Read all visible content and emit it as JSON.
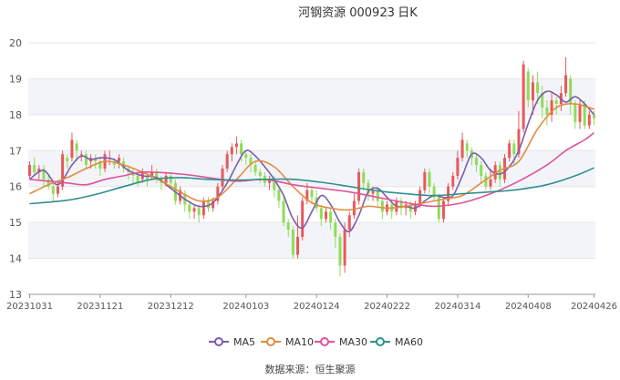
{
  "header": {
    "title": "河钢资源 000923",
    "period": "日K"
  },
  "source": "数据来源：恒生聚源",
  "chart_data": {
    "type": "candlestick",
    "ylim": [
      13,
      20
    ],
    "yticks": [
      "13",
      "14",
      "15",
      "16",
      "17",
      "18",
      "19",
      "20"
    ],
    "xticks": [
      {
        "label": "20231031",
        "index": 0
      },
      {
        "label": "20231121",
        "index": 15
      },
      {
        "label": "20231212",
        "index": 30
      },
      {
        "label": "20240103",
        "index": 46
      },
      {
        "label": "20240124",
        "index": 61
      },
      {
        "label": "20240222",
        "index": 76
      },
      {
        "label": "20240314",
        "index": 91
      },
      {
        "label": "20240408",
        "index": 106
      },
      {
        "label": "20240426",
        "index": 120
      }
    ],
    "colors": {
      "up": "#e8595a",
      "down": "#8fdc57",
      "band": "#f3f4f9",
      "axis": "#999999",
      "grid": "#e6e6e6"
    },
    "candles": [
      [
        16.3,
        16.6,
        16.7,
        16.2
      ],
      [
        16.6,
        16.4,
        16.8,
        16.3
      ],
      [
        16.4,
        16.5,
        16.6,
        16.2
      ],
      [
        16.5,
        16.2,
        16.6,
        16.0
      ],
      [
        16.2,
        16.0,
        16.3,
        15.9
      ],
      [
        16.0,
        15.8,
        16.1,
        15.6
      ],
      [
        15.8,
        16.0,
        16.1,
        15.7
      ],
      [
        16.0,
        16.9,
        17.0,
        15.9
      ],
      [
        16.8,
        16.7,
        16.9,
        16.5
      ],
      [
        16.8,
        17.3,
        17.5,
        16.7
      ],
      [
        17.2,
        17.0,
        17.3,
        16.7
      ],
      [
        16.9,
        16.9,
        17.0,
        16.7
      ],
      [
        16.9,
        16.6,
        17.0,
        16.5
      ],
      [
        16.7,
        16.8,
        16.9,
        16.5
      ],
      [
        16.8,
        16.7,
        16.9,
        16.5
      ],
      [
        16.7,
        16.5,
        16.8,
        16.3
      ],
      [
        16.5,
        16.9,
        17.0,
        16.4
      ],
      [
        16.8,
        16.8,
        17.0,
        16.6
      ],
      [
        16.7,
        16.6,
        16.8,
        16.5
      ],
      [
        16.7,
        16.8,
        16.9,
        16.5
      ],
      [
        16.7,
        16.5,
        16.8,
        16.4
      ],
      [
        16.5,
        16.4,
        16.6,
        16.2
      ],
      [
        16.4,
        16.3,
        16.5,
        16.1
      ],
      [
        16.3,
        16.1,
        16.4,
        16.0
      ],
      [
        16.2,
        16.4,
        16.5,
        16.1
      ],
      [
        16.3,
        16.2,
        16.4,
        16.0
      ],
      [
        16.3,
        16.4,
        16.6,
        16.2
      ],
      [
        16.4,
        16.2,
        16.5,
        16.1
      ],
      [
        16.2,
        16.1,
        16.3,
        15.9
      ],
      [
        16.1,
        16.3,
        16.4,
        16.0
      ],
      [
        16.3,
        16.1,
        16.4,
        16.0
      ],
      [
        16.1,
        15.6,
        16.2,
        15.5
      ],
      [
        15.6,
        15.9,
        16.0,
        15.5
      ],
      [
        15.8,
        15.5,
        15.9,
        15.3
      ],
      [
        15.5,
        15.3,
        15.6,
        15.1
      ],
      [
        15.3,
        15.4,
        15.5,
        15.1
      ],
      [
        15.4,
        15.2,
        15.5,
        15.0
      ],
      [
        15.2,
        15.6,
        15.7,
        15.1
      ],
      [
        15.6,
        15.4,
        15.7,
        15.3
      ],
      [
        15.4,
        15.6,
        15.7,
        15.3
      ],
      [
        15.6,
        16.0,
        16.1,
        15.5
      ],
      [
        16.0,
        16.5,
        16.6,
        15.9
      ],
      [
        16.5,
        16.9,
        17.0,
        16.4
      ],
      [
        16.9,
        17.1,
        17.2,
        16.7
      ],
      [
        17.1,
        17.2,
        17.4,
        16.9
      ],
      [
        17.2,
        16.9,
        17.3,
        16.7
      ],
      [
        16.9,
        16.8,
        17.0,
        16.6
      ],
      [
        16.8,
        16.6,
        16.9,
        16.4
      ],
      [
        16.6,
        16.4,
        16.7,
        16.3
      ],
      [
        16.4,
        16.3,
        16.5,
        16.1
      ],
      [
        16.3,
        16.1,
        16.4,
        16.0
      ],
      [
        16.1,
        16.2,
        16.3,
        15.9
      ],
      [
        16.2,
        15.9,
        16.3,
        15.7
      ],
      [
        15.9,
        15.6,
        16.0,
        15.4
      ],
      [
        15.6,
        15.0,
        15.7,
        14.9
      ],
      [
        15.0,
        14.8,
        15.1,
        14.6
      ],
      [
        14.8,
        14.1,
        14.9,
        14.0
      ],
      [
        14.1,
        14.6,
        15.2,
        14.0
      ],
      [
        14.6,
        15.6,
        15.7,
        14.5
      ],
      [
        15.6,
        15.9,
        16.1,
        15.5
      ],
      [
        15.9,
        15.7,
        16.0,
        15.5
      ],
      [
        15.7,
        15.4,
        15.9,
        15.3
      ],
      [
        15.4,
        15.1,
        15.5,
        14.9
      ],
      [
        15.1,
        15.3,
        15.4,
        15.0
      ],
      [
        15.3,
        15.0,
        15.4,
        14.8
      ],
      [
        15.0,
        14.6,
        15.1,
        14.3
      ],
      [
        14.6,
        13.8,
        14.7,
        13.5
      ],
      [
        13.8,
        14.8,
        15.0,
        13.6
      ],
      [
        14.8,
        15.2,
        15.3,
        14.6
      ],
      [
        15.2,
        15.6,
        15.8,
        15.1
      ],
      [
        15.6,
        16.4,
        16.5,
        15.5
      ],
      [
        16.4,
        16.1,
        16.5,
        15.9
      ],
      [
        16.1,
        15.8,
        16.2,
        15.6
      ],
      [
        15.8,
        15.9,
        16.0,
        15.6
      ],
      [
        15.9,
        15.6,
        16.0,
        15.4
      ],
      [
        15.6,
        15.3,
        15.7,
        15.1
      ],
      [
        15.3,
        15.5,
        15.6,
        15.2
      ],
      [
        15.5,
        15.3,
        15.6,
        15.1
      ],
      [
        15.3,
        15.6,
        15.7,
        15.2
      ],
      [
        15.6,
        15.4,
        15.7,
        15.2
      ],
      [
        15.4,
        15.5,
        15.6,
        15.2
      ],
      [
        15.5,
        15.3,
        15.6,
        15.1
      ],
      [
        15.3,
        15.5,
        15.6,
        15.2
      ],
      [
        15.5,
        15.9,
        16.0,
        15.4
      ],
      [
        15.9,
        16.4,
        16.5,
        15.8
      ],
      [
        16.4,
        16.0,
        16.5,
        15.8
      ],
      [
        16.0,
        15.7,
        16.1,
        15.6
      ],
      [
        15.7,
        15.1,
        15.8,
        15.0
      ],
      [
        15.1,
        15.6,
        15.7,
        15.0
      ],
      [
        15.6,
        16.0,
        16.1,
        15.5
      ],
      [
        16.0,
        16.3,
        16.4,
        15.9
      ],
      [
        16.3,
        16.8,
        17.0,
        16.2
      ],
      [
        16.8,
        17.3,
        17.5,
        16.7
      ],
      [
        17.2,
        17.0,
        17.3,
        16.8
      ],
      [
        17.0,
        16.8,
        17.1,
        16.6
      ],
      [
        16.8,
        16.6,
        16.9,
        16.4
      ],
      [
        16.6,
        16.3,
        16.7,
        16.1
      ],
      [
        16.3,
        16.0,
        16.4,
        15.9
      ],
      [
        16.0,
        16.2,
        16.5,
        15.9
      ],
      [
        16.2,
        16.6,
        16.7,
        16.1
      ],
      [
        16.6,
        16.2,
        16.7,
        16.0
      ],
      [
        16.2,
        16.8,
        16.9,
        16.1
      ],
      [
        16.8,
        17.2,
        17.3,
        16.7
      ],
      [
        17.2,
        16.9,
        17.3,
        16.6
      ],
      [
        16.9,
        17.6,
        18.1,
        16.8
      ],
      [
        17.6,
        19.4,
        19.5,
        17.5
      ],
      [
        19.2,
        18.4,
        19.3,
        18.2
      ],
      [
        18.4,
        18.9,
        19.1,
        18.0
      ],
      [
        18.9,
        18.6,
        19.2,
        18.3
      ],
      [
        18.6,
        18.2,
        18.8,
        17.9
      ],
      [
        18.2,
        18.0,
        18.4,
        17.7
      ],
      [
        18.0,
        18.4,
        18.6,
        17.8
      ],
      [
        18.4,
        18.3,
        18.5,
        18.0
      ],
      [
        18.3,
        18.6,
        18.8,
        18.1
      ],
      [
        18.6,
        19.1,
        19.6,
        18.5
      ],
      [
        19.0,
        18.3,
        19.1,
        18.0
      ],
      [
        18.3,
        17.8,
        18.4,
        17.6
      ],
      [
        17.8,
        18.3,
        18.4,
        17.6
      ],
      [
        18.3,
        17.7,
        18.4,
        17.6
      ],
      [
        17.7,
        18.0,
        18.1,
        17.6
      ],
      [
        18.0,
        17.9,
        18.1,
        17.7
      ]
    ],
    "series": [
      {
        "name": "MA5",
        "color": "#7c5cae",
        "points": [
          [
            0,
            16.2
          ],
          [
            3,
            16.45
          ],
          [
            6,
            16.05
          ],
          [
            9,
            16.6
          ],
          [
            11,
            16.85
          ],
          [
            13,
            16.75
          ],
          [
            15,
            16.8
          ],
          [
            18,
            16.75
          ],
          [
            21,
            16.45
          ],
          [
            24,
            16.3
          ],
          [
            27,
            16.25
          ],
          [
            30,
            15.95
          ],
          [
            33,
            15.65
          ],
          [
            36,
            15.45
          ],
          [
            39,
            15.55
          ],
          [
            42,
            16.1
          ],
          [
            44,
            16.6
          ],
          [
            46,
            17.0
          ],
          [
            48,
            16.85
          ],
          [
            50,
            16.55
          ],
          [
            52,
            16.2
          ],
          [
            54,
            15.75
          ],
          [
            56,
            15.1
          ],
          [
            58,
            14.85
          ],
          [
            60,
            15.3
          ],
          [
            62,
            15.75
          ],
          [
            64,
            15.5
          ],
          [
            66,
            15.0
          ],
          [
            68,
            14.75
          ],
          [
            70,
            15.2
          ],
          [
            72,
            15.85
          ],
          [
            74,
            15.95
          ],
          [
            76,
            15.7
          ],
          [
            78,
            15.45
          ],
          [
            80,
            15.45
          ],
          [
            82,
            15.4
          ],
          [
            84,
            15.6
          ],
          [
            86,
            15.75
          ],
          [
            88,
            15.7
          ],
          [
            90,
            15.75
          ],
          [
            92,
            16.3
          ],
          [
            94,
            16.9
          ],
          [
            96,
            16.8
          ],
          [
            98,
            16.45
          ],
          [
            100,
            16.35
          ],
          [
            102,
            16.55
          ],
          [
            104,
            17.0
          ],
          [
            106,
            17.75
          ],
          [
            108,
            18.4
          ],
          [
            110,
            18.65
          ],
          [
            112,
            18.55
          ],
          [
            114,
            18.35
          ],
          [
            116,
            18.5
          ],
          [
            118,
            18.3
          ],
          [
            120,
            18.0
          ]
        ]
      },
      {
        "name": "MA10",
        "color": "#e38a3e",
        "points": [
          [
            0,
            15.8
          ],
          [
            4,
            16.05
          ],
          [
            8,
            16.25
          ],
          [
            12,
            16.5
          ],
          [
            16,
            16.7
          ],
          [
            20,
            16.6
          ],
          [
            24,
            16.4
          ],
          [
            28,
            16.15
          ],
          [
            32,
            15.85
          ],
          [
            36,
            15.6
          ],
          [
            40,
            15.7
          ],
          [
            44,
            16.2
          ],
          [
            48,
            16.7
          ],
          [
            52,
            16.55
          ],
          [
            56,
            16.0
          ],
          [
            60,
            15.55
          ],
          [
            64,
            15.4
          ],
          [
            68,
            15.35
          ],
          [
            72,
            15.45
          ],
          [
            76,
            15.4
          ],
          [
            80,
            15.45
          ],
          [
            84,
            15.55
          ],
          [
            88,
            15.65
          ],
          [
            92,
            15.75
          ],
          [
            96,
            16.1
          ],
          [
            100,
            16.45
          ],
          [
            104,
            16.7
          ],
          [
            108,
            17.6
          ],
          [
            112,
            18.2
          ],
          [
            116,
            18.3
          ],
          [
            120,
            18.15
          ]
        ]
      },
      {
        "name": "MA30",
        "color": "#e0539b",
        "points": [
          [
            0,
            16.2
          ],
          [
            8,
            16.1
          ],
          [
            12,
            16.05
          ],
          [
            16,
            16.2
          ],
          [
            20,
            16.3
          ],
          [
            24,
            16.4
          ],
          [
            32,
            16.35
          ],
          [
            38,
            16.25
          ],
          [
            44,
            16.15
          ],
          [
            50,
            16.2
          ],
          [
            56,
            16.05
          ],
          [
            62,
            15.95
          ],
          [
            68,
            15.85
          ],
          [
            74,
            15.7
          ],
          [
            80,
            15.55
          ],
          [
            86,
            15.45
          ],
          [
            92,
            15.55
          ],
          [
            98,
            15.8
          ],
          [
            104,
            16.15
          ],
          [
            110,
            16.6
          ],
          [
            114,
            17.0
          ],
          [
            118,
            17.3
          ],
          [
            120,
            17.5
          ]
        ]
      },
      {
        "name": "MA60",
        "color": "#2f8f8f",
        "points": [
          [
            0,
            15.52
          ],
          [
            8,
            15.62
          ],
          [
            14,
            15.78
          ],
          [
            20,
            16.0
          ],
          [
            26,
            16.2
          ],
          [
            32,
            16.25
          ],
          [
            38,
            16.2
          ],
          [
            44,
            16.18
          ],
          [
            50,
            16.2
          ],
          [
            56,
            16.2
          ],
          [
            62,
            16.12
          ],
          [
            68,
            16.0
          ],
          [
            74,
            15.88
          ],
          [
            80,
            15.8
          ],
          [
            86,
            15.75
          ],
          [
            92,
            15.8
          ],
          [
            98,
            15.85
          ],
          [
            104,
            15.92
          ],
          [
            110,
            16.05
          ],
          [
            116,
            16.3
          ],
          [
            120,
            16.52
          ]
        ]
      }
    ]
  }
}
